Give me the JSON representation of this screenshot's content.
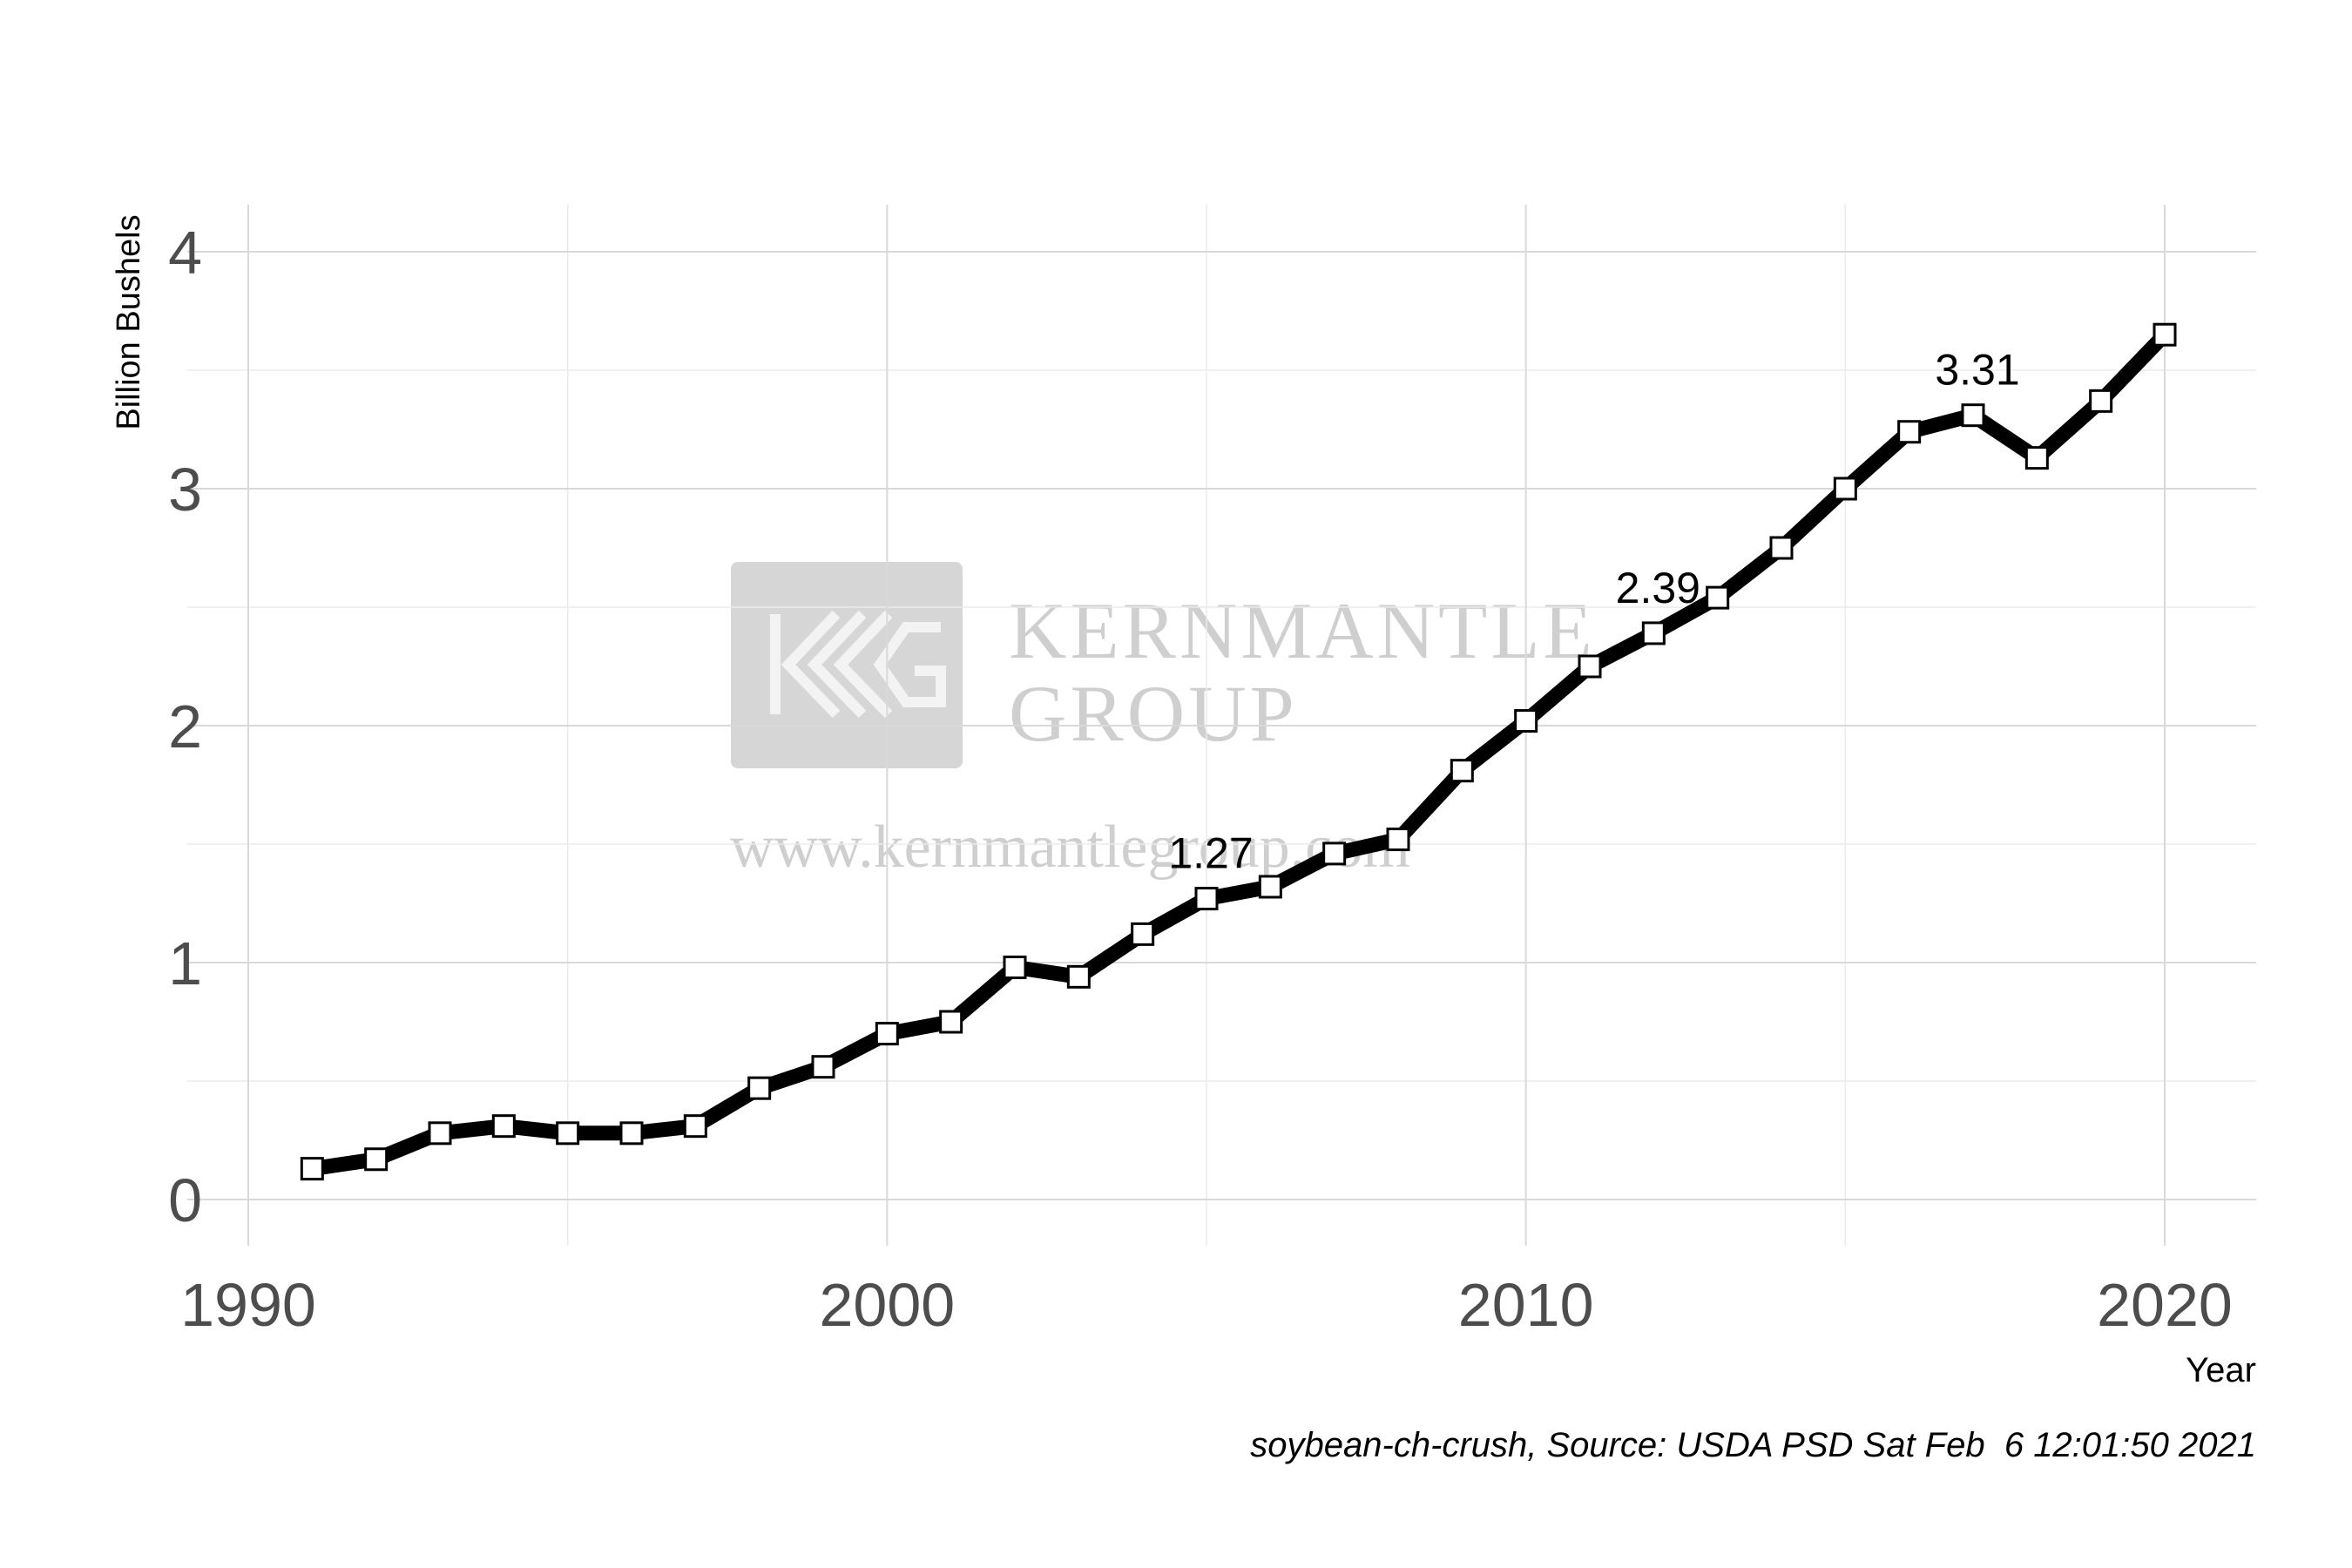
{
  "chart_data": {
    "type": "line",
    "title": "",
    "xlabel": "Year",
    "ylabel": "Billion Bushels",
    "xlim": [
      1990,
      2020
    ],
    "ylim": [
      0,
      4
    ],
    "x_ticks": [
      1990,
      2000,
      2010,
      2020
    ],
    "y_ticks": [
      0,
      1,
      2,
      3,
      4
    ],
    "grid": true,
    "legend": "none",
    "series": [
      {
        "x": [
          1991,
          1992,
          1993,
          1994,
          1995,
          1996,
          1997,
          1998,
          1999,
          2000,
          2001,
          2002,
          2003,
          2004,
          2005,
          2006,
          2007,
          2008,
          2009,
          2010,
          2011,
          2012,
          2013,
          2014,
          2015,
          2016,
          2017,
          2018,
          2019,
          2020
        ],
        "values": [
          0.13,
          0.17,
          0.28,
          0.31,
          0.28,
          0.28,
          0.31,
          0.47,
          0.56,
          0.7,
          0.75,
          0.98,
          0.94,
          1.12,
          1.27,
          1.32,
          1.46,
          1.52,
          1.81,
          2.02,
          2.25,
          2.39,
          2.54,
          2.75,
          3.0,
          3.24,
          3.31,
          3.13,
          3.37,
          3.65
        ],
        "color": "#000000",
        "marker": "square"
      }
    ],
    "annotations": [
      {
        "x": 2005,
        "y": 1.27,
        "text": "1.27"
      },
      {
        "x": 2012,
        "y": 2.39,
        "text": "2.39"
      },
      {
        "x": 2017,
        "y": 3.31,
        "text": "3.31"
      }
    ],
    "caption": "soybean-ch-crush, Source: USDA PSD Sat Feb  6 12:01:50 2021"
  },
  "watermark": {
    "line1": "KERNMANTLE",
    "line2": "GROUP",
    "url": "www.kernmantlegroup.com"
  }
}
